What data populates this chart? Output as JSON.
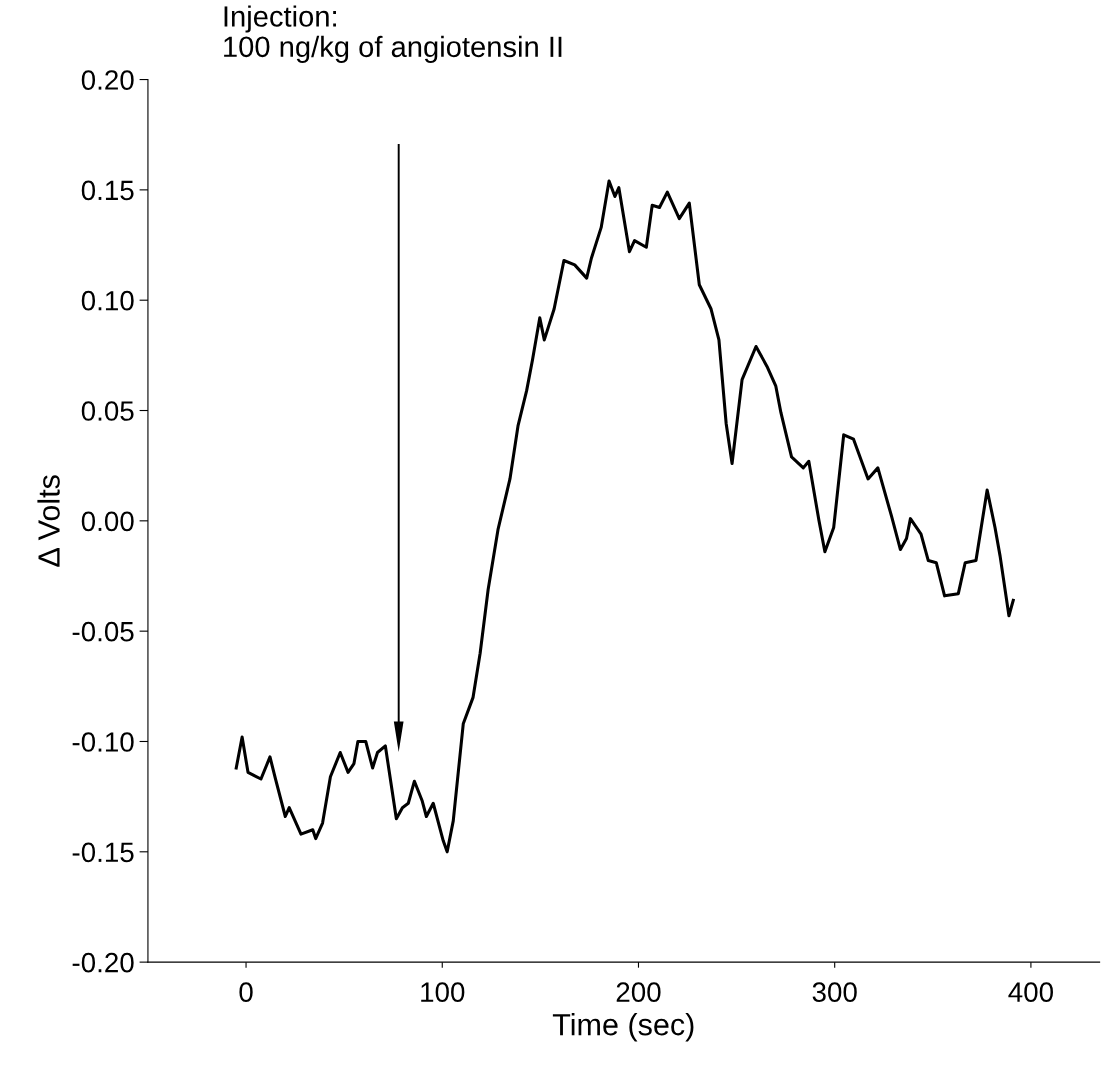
{
  "chart_data": {
    "type": "line",
    "xlabel": "Time (sec)",
    "ylabel": "Δ Volts",
    "xlim": [
      -50,
      435
    ],
    "xticks": [
      0,
      100,
      200,
      300,
      400
    ],
    "ylim": [
      -0.2,
      0.2
    ],
    "yticks": [
      {
        "value": -0.2,
        "label": "-0.20"
      },
      {
        "value": -0.15,
        "label": "-0.15"
      },
      {
        "value": -0.1,
        "label": "-0.10"
      },
      {
        "value": -0.05,
        "label": "-0.05"
      },
      {
        "value": 0,
        "label": "0.00"
      },
      {
        "value": 0.05,
        "label": "0.05"
      },
      {
        "value": 0.1,
        "label": "0.10"
      },
      {
        "value": 0.15,
        "label": "0.15"
      },
      {
        "value": 0.2,
        "label": "0.20"
      }
    ],
    "grid": false,
    "legend": false,
    "marker": "none",
    "line_style": "solid",
    "annotations": [
      "Injection:\n100 ng/kg of angiotensin II"
    ],
    "series": [
      {
        "color": "#000000",
        "x": [
          -5,
          -2,
          1,
          7.6,
          12.2,
          15,
          20,
          22,
          28,
          34,
          35.5,
          39,
          43,
          48,
          52,
          55,
          57,
          61,
          64.5,
          67,
          71,
          76.6,
          79.7,
          82.7,
          85.8,
          89.8,
          91.9,
          95.4,
          100.5,
          102.5,
          105.6,
          110.7,
          115.7,
          119.3,
          123.4,
          128.4,
          134.5,
          138.6,
          143,
          146,
          149.7,
          152,
          157,
          162,
          167.5,
          173.6,
          176,
          181,
          185,
          188,
          190,
          195.4,
          198,
          204,
          207,
          210.7,
          214.7,
          220.8,
          225.9,
          231,
          237,
          241,
          244.7,
          247.7,
          252.8,
          259.9,
          265.5,
          270,
          272.6,
          278,
          284,
          286.8,
          292,
          295,
          299.5,
          304.6,
          309.6,
          317,
          322,
          329,
          333.5,
          336.6,
          338.6,
          344,
          347.7,
          351.8,
          356,
          363,
          366.5,
          372,
          377.7,
          381.7,
          384.3,
          388.8,
          391
        ],
        "values": [
          -0.112,
          -0.098,
          -0.114,
          -0.117,
          -0.107,
          -0.117,
          -0.134,
          -0.13,
          -0.142,
          -0.14,
          -0.144,
          -0.137,
          -0.116,
          -0.105,
          -0.114,
          -0.11,
          -0.1,
          -0.1,
          -0.112,
          -0.105,
          -0.102,
          -0.135,
          -0.13,
          -0.128,
          -0.118,
          -0.127,
          -0.134,
          -0.128,
          -0.145,
          -0.15,
          -0.136,
          -0.092,
          -0.08,
          -0.06,
          -0.031,
          -0.004,
          0.019,
          0.043,
          0.059,
          0.073,
          0.092,
          0.082,
          0.096,
          0.118,
          0.116,
          0.11,
          0.119,
          0.133,
          0.154,
          0.147,
          0.151,
          0.122,
          0.127,
          0.124,
          0.143,
          0.142,
          0.149,
          0.137,
          0.144,
          0.107,
          0.096,
          0.082,
          0.044,
          0.026,
          0.064,
          0.079,
          0.07,
          0.061,
          0.049,
          0.029,
          0.024,
          0.027,
          0.0,
          -0.014,
          -0.003,
          0.039,
          0.037,
          0.019,
          0.024,
          0.002,
          -0.013,
          -0.008,
          0.001,
          -0.006,
          -0.018,
          -0.019,
          -0.034,
          -0.033,
          -0.019,
          -0.018,
          0.014,
          -0.003,
          -0.016,
          -0.043,
          -0.036
        ]
      }
    ]
  }
}
